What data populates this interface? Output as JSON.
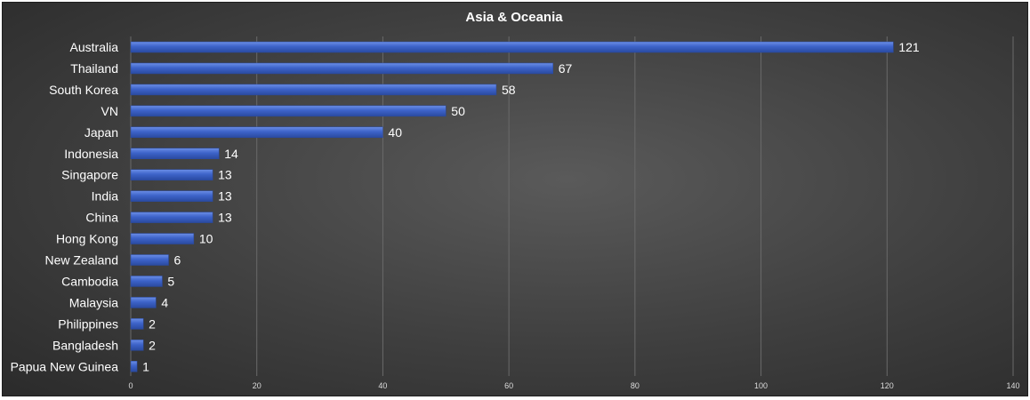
{
  "chart_data": {
    "type": "bar",
    "orientation": "horizontal",
    "title": "Asia & Oceania",
    "categories": [
      "Australia",
      "Thailand",
      "South Korea",
      "VN",
      "Japan",
      "Indonesia",
      "Singapore",
      "India",
      "China",
      "Hong Kong",
      "New Zealand",
      "Cambodia",
      "Malaysia",
      "Philippines",
      "Bangladesh",
      "Papua New Guinea"
    ],
    "values": [
      121,
      67,
      58,
      50,
      40,
      14,
      13,
      13,
      13,
      10,
      6,
      5,
      4,
      2,
      2,
      1
    ],
    "xlim": [
      0,
      140
    ],
    "xticks": [
      0,
      20,
      40,
      60,
      80,
      100,
      120,
      140
    ],
    "xlabel": "",
    "ylabel": "",
    "grid": true,
    "data_labels": true,
    "colors": {
      "bar": "#3d63c9",
      "bar_dark": "#2a4aa0",
      "bar_light": "#6b8ee6",
      "background": "#3f3f3f",
      "text": "#ffffff"
    }
  }
}
